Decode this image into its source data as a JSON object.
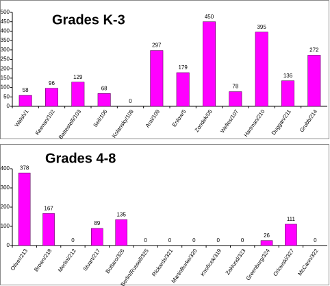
{
  "chart_data": [
    {
      "type": "bar",
      "title": "Grades K-3",
      "categories": [
        "Walsh/1",
        "Keenan/102",
        "Battestelli/103",
        "Seil/106",
        "Kolansky/108",
        "Arai/109",
        "Enlow/5",
        "Zondek/05",
        "Welles/107",
        "Hartman/210",
        "Duggan/211",
        "Grubb/214"
      ],
      "values": [
        58,
        96,
        129,
        68,
        0,
        297,
        179,
        450,
        78,
        395,
        136,
        272
      ],
      "color": "#ff00ff",
      "ylim": [
        0,
        500
      ],
      "yticks": [
        0,
        50,
        100,
        150,
        200,
        250,
        300,
        350,
        400,
        450,
        500
      ]
    },
    {
      "type": "bar",
      "title": "Grades 4-8",
      "categories": [
        "Oliver/213",
        "Brown/218",
        "Merlini/212",
        "Stuart/217",
        "Bottaro/326",
        "Berlin/Russell/325",
        "Rickards/321",
        "MartinBurke/320",
        "Knoficek/319",
        "Zaklund/323",
        "Greenburg/324",
        "Orlowski/327",
        "McCann/322"
      ],
      "values": [
        378,
        167,
        0,
        89,
        135,
        0,
        0,
        0,
        0,
        0,
        26,
        111,
        0
      ],
      "color": "#ff00ff",
      "ylim": [
        0,
        400
      ],
      "yticks": [
        0,
        100,
        200,
        300,
        400
      ]
    }
  ]
}
